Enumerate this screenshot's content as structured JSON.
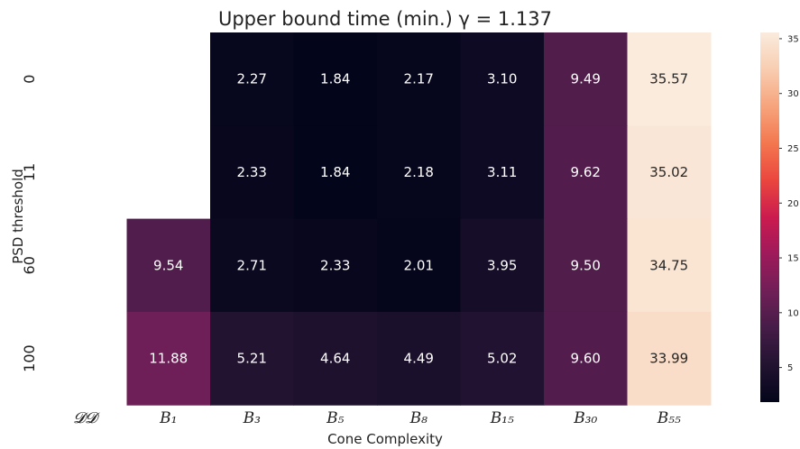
{
  "chart_data": {
    "type": "heatmap",
    "title": "Upper bound time (min.) γ = 1.137",
    "xlabel": "Cone Complexity",
    "ylabel": "PSD threshold",
    "x_categories": [
      "𝓓𝓓",
      "B₁",
      "B₃",
      "B₅",
      "B₈",
      "B₁₅",
      "B₃₀",
      "B₅₅"
    ],
    "y_categories": [
      "0",
      "11",
      "60",
      "100"
    ],
    "values": [
      [
        null,
        null,
        2.27,
        1.84,
        2.17,
        3.1,
        9.49,
        35.57
      ],
      [
        null,
        null,
        2.33,
        1.84,
        2.18,
        3.11,
        9.62,
        35.02
      ],
      [
        null,
        9.54,
        2.71,
        2.33,
        2.01,
        3.95,
        9.5,
        34.75
      ],
      [
        null,
        11.88,
        5.21,
        4.64,
        4.49,
        5.02,
        9.6,
        33.99
      ]
    ],
    "cell_labels": [
      [
        "",
        "",
        "2.27",
        "1.84",
        "2.17",
        "3.10",
        "9.49",
        "35.57"
      ],
      [
        "",
        "",
        "2.33",
        "1.84",
        "2.18",
        "3.11",
        "9.62",
        "35.02"
      ],
      [
        "",
        "9.54",
        "2.71",
        "2.33",
        "2.01",
        "3.95",
        "9.50",
        "34.75"
      ],
      [
        "",
        "11.88",
        "5.21",
        "4.64",
        "4.49",
        "5.02",
        "9.60",
        "33.99"
      ]
    ],
    "colorbar": {
      "range": [
        1.84,
        35.57
      ],
      "ticks": [
        5,
        10,
        15,
        20,
        25,
        30,
        35
      ],
      "colormap": "rocket"
    },
    "grid": false,
    "legend": "colorbar-right"
  }
}
